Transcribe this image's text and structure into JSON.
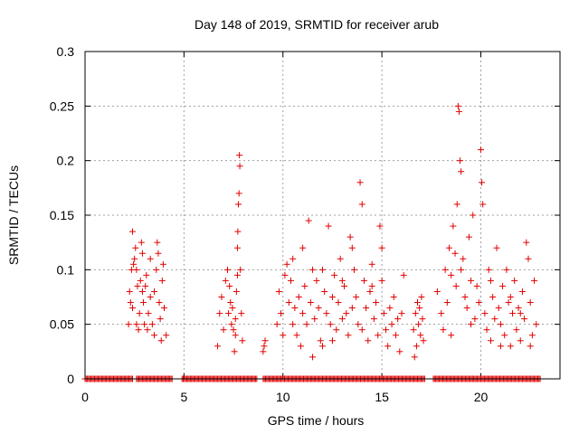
{
  "chart_data": {
    "type": "scatter",
    "title": "Day 148 of 2019, SRMTID for receiver arub",
    "xlabel": "GPS time / hours",
    "ylabel": "SRMTID / TECUs",
    "xlim": [
      0,
      24
    ],
    "ylim": [
      0,
      0.3
    ],
    "xticks": [
      0,
      5,
      10,
      15,
      20
    ],
    "xtick_labels": [
      "0",
      "5",
      "10",
      "15",
      "20"
    ],
    "yticks": [
      0,
      0.05,
      0.1,
      0.15,
      0.2,
      0.25,
      0.3
    ],
    "ytick_labels": [
      "0",
      "0.05",
      "0.1",
      "0.15",
      "0.2",
      "0.25",
      "0.3"
    ],
    "grid": true,
    "marker": "+",
    "color": "#e00000",
    "series": [
      {
        "name": "SRMTID",
        "points": [
          [
            2.2,
            0.05
          ],
          [
            2.25,
            0.08
          ],
          [
            2.3,
            0.07
          ],
          [
            2.35,
            0.1
          ],
          [
            2.4,
            0.135
          ],
          [
            2.45,
            0.105
          ],
          [
            2.5,
            0.11
          ],
          [
            2.55,
            0.12
          ],
          [
            2.6,
            0.1
          ],
          [
            2.65,
            0.085
          ],
          [
            2.7,
            0.045
          ],
          [
            2.75,
            0.06
          ],
          [
            2.8,
            0.09
          ],
          [
            2.85,
            0.125
          ],
          [
            2.9,
            0.115
          ],
          [
            2.95,
            0.07
          ],
          [
            3.0,
            0.05
          ],
          [
            3.05,
            0.085
          ],
          [
            3.1,
            0.095
          ],
          [
            3.15,
            0.045
          ],
          [
            3.2,
            0.06
          ],
          [
            3.3,
            0.075
          ],
          [
            3.4,
            0.05
          ],
          [
            3.5,
            0.08
          ],
          [
            3.6,
            0.1
          ],
          [
            3.65,
            0.125
          ],
          [
            3.7,
            0.115
          ],
          [
            3.75,
            0.07
          ],
          [
            3.8,
            0.055
          ],
          [
            3.85,
            0.035
          ],
          [
            3.9,
            0.09
          ],
          [
            3.95,
            0.105
          ],
          [
            4.0,
            0.065
          ],
          [
            4.1,
            0.04
          ],
          [
            2.4,
            0.065
          ],
          [
            2.6,
            0.05
          ],
          [
            2.9,
            0.08
          ],
          [
            3.3,
            0.11
          ],
          [
            3.5,
            0.04
          ],
          [
            6.7,
            0.03
          ],
          [
            6.8,
            0.06
          ],
          [
            6.9,
            0.075
          ],
          [
            7.0,
            0.045
          ],
          [
            7.1,
            0.09
          ],
          [
            7.2,
            0.1
          ],
          [
            7.25,
            0.06
          ],
          [
            7.3,
            0.085
          ],
          [
            7.35,
            0.07
          ],
          [
            7.4,
            0.05
          ],
          [
            7.45,
            0.065
          ],
          [
            7.5,
            0.045
          ],
          [
            7.55,
            0.025
          ],
          [
            7.6,
            0.055
          ],
          [
            7.65,
            0.08
          ],
          [
            7.7,
            0.12
          ],
          [
            7.72,
            0.135
          ],
          [
            7.75,
            0.16
          ],
          [
            7.78,
            0.17
          ],
          [
            7.8,
            0.205
          ],
          [
            7.82,
            0.195
          ],
          [
            7.85,
            0.1
          ],
          [
            7.9,
            0.06
          ],
          [
            7.95,
            0.035
          ],
          [
            7.6,
            0.04
          ],
          [
            7.7,
            0.095
          ],
          [
            9.0,
            0.025
          ],
          [
            9.05,
            0.03
          ],
          [
            9.1,
            0.035
          ],
          [
            9.7,
            0.05
          ],
          [
            9.8,
            0.08
          ],
          [
            9.9,
            0.06
          ],
          [
            10.0,
            0.04
          ],
          [
            10.1,
            0.095
          ],
          [
            10.2,
            0.105
          ],
          [
            10.3,
            0.07
          ],
          [
            10.4,
            0.09
          ],
          [
            10.5,
            0.05
          ],
          [
            10.6,
            0.065
          ],
          [
            10.7,
            0.04
          ],
          [
            10.8,
            0.075
          ],
          [
            10.9,
            0.03
          ],
          [
            11.0,
            0.06
          ],
          [
            11.1,
            0.085
          ],
          [
            11.2,
            0.05
          ],
          [
            11.3,
            0.145
          ],
          [
            11.4,
            0.07
          ],
          [
            11.5,
            0.02
          ],
          [
            11.6,
            0.055
          ],
          [
            11.7,
            0.09
          ],
          [
            11.8,
            0.065
          ],
          [
            11.9,
            0.035
          ],
          [
            12.0,
            0.1
          ],
          [
            12.1,
            0.08
          ],
          [
            12.2,
            0.06
          ],
          [
            12.3,
            0.14
          ],
          [
            12.4,
            0.05
          ],
          [
            12.5,
            0.075
          ],
          [
            12.6,
            0.095
          ],
          [
            12.7,
            0.045
          ],
          [
            12.8,
            0.07
          ],
          [
            12.9,
            0.11
          ],
          [
            13.0,
            0.055
          ],
          [
            13.1,
            0.085
          ],
          [
            13.2,
            0.06
          ],
          [
            13.3,
            0.04
          ],
          [
            13.4,
            0.13
          ],
          [
            13.5,
            0.12
          ],
          [
            13.6,
            0.1
          ],
          [
            13.7,
            0.075
          ],
          [
            13.8,
            0.05
          ],
          [
            13.9,
            0.18
          ],
          [
            14.0,
            0.16
          ],
          [
            14.1,
            0.09
          ],
          [
            14.2,
            0.065
          ],
          [
            14.3,
            0.035
          ],
          [
            14.4,
            0.08
          ],
          [
            14.5,
            0.105
          ],
          [
            14.6,
            0.055
          ],
          [
            14.7,
            0.07
          ],
          [
            14.8,
            0.04
          ],
          [
            14.9,
            0.14
          ],
          [
            15.0,
            0.12
          ],
          [
            15.1,
            0.06
          ],
          [
            15.2,
            0.045
          ],
          [
            15.3,
            0.03
          ],
          [
            15.4,
            0.065
          ],
          [
            15.5,
            0.05
          ],
          [
            15.6,
            0.075
          ],
          [
            15.7,
            0.04
          ],
          [
            15.8,
            0.055
          ],
          [
            15.9,
            0.025
          ],
          [
            16.0,
            0.06
          ],
          [
            16.1,
            0.095
          ],
          [
            10.5,
            0.11
          ],
          [
            11.0,
            0.12
          ],
          [
            12.5,
            0.035
          ],
          [
            13.0,
            0.09
          ],
          [
            14.0,
            0.045
          ],
          [
            14.5,
            0.085
          ],
          [
            15.0,
            0.09
          ],
          [
            11.5,
            0.1
          ],
          [
            12.0,
            0.03
          ],
          [
            13.5,
            0.065
          ],
          [
            16.6,
            0.045
          ],
          [
            16.7,
            0.06
          ],
          [
            16.75,
            0.03
          ],
          [
            16.8,
            0.07
          ],
          [
            16.85,
            0.05
          ],
          [
            16.9,
            0.065
          ],
          [
            16.95,
            0.04
          ],
          [
            17.0,
            0.075
          ],
          [
            17.05,
            0.055
          ],
          [
            17.1,
            0.035
          ],
          [
            16.65,
            0.02
          ],
          [
            17.8,
            0.08
          ],
          [
            18.0,
            0.06
          ],
          [
            18.1,
            0.045
          ],
          [
            18.2,
            0.1
          ],
          [
            18.3,
            0.07
          ],
          [
            18.4,
            0.12
          ],
          [
            18.5,
            0.095
          ],
          [
            18.6,
            0.14
          ],
          [
            18.7,
            0.115
          ],
          [
            18.75,
            0.085
          ],
          [
            18.8,
            0.16
          ],
          [
            18.85,
            0.25
          ],
          [
            18.9,
            0.245
          ],
          [
            18.95,
            0.2
          ],
          [
            19.0,
            0.19
          ],
          [
            19.1,
            0.11
          ],
          [
            19.2,
            0.075
          ],
          [
            19.3,
            0.065
          ],
          [
            19.4,
            0.13
          ],
          [
            19.5,
            0.09
          ],
          [
            19.6,
            0.15
          ],
          [
            19.7,
            0.055
          ],
          [
            19.8,
            0.085
          ],
          [
            19.9,
            0.07
          ],
          [
            20.0,
            0.21
          ],
          [
            20.05,
            0.18
          ],
          [
            20.1,
            0.16
          ],
          [
            20.2,
            0.06
          ],
          [
            20.3,
            0.045
          ],
          [
            20.4,
            0.1
          ],
          [
            20.5,
            0.035
          ],
          [
            20.6,
            0.075
          ],
          [
            20.7,
            0.055
          ],
          [
            20.8,
            0.12
          ],
          [
            20.9,
            0.065
          ],
          [
            21.0,
            0.05
          ],
          [
            21.1,
            0.085
          ],
          [
            21.2,
            0.04
          ],
          [
            21.3,
            0.1
          ],
          [
            21.4,
            0.07
          ],
          [
            21.5,
            0.03
          ],
          [
            21.6,
            0.06
          ],
          [
            21.7,
            0.09
          ],
          [
            21.8,
            0.045
          ],
          [
            21.9,
            0.065
          ],
          [
            22.0,
            0.035
          ],
          [
            22.1,
            0.08
          ],
          [
            22.2,
            0.055
          ],
          [
            22.3,
            0.125
          ],
          [
            22.4,
            0.11
          ],
          [
            22.5,
            0.07
          ],
          [
            22.6,
            0.04
          ],
          [
            22.7,
            0.09
          ],
          [
            22.8,
            0.05
          ],
          [
            18.5,
            0.04
          ],
          [
            19.0,
            0.1
          ],
          [
            19.5,
            0.05
          ],
          [
            20.5,
            0.09
          ],
          [
            21.0,
            0.03
          ],
          [
            21.5,
            0.075
          ],
          [
            22.0,
            0.06
          ],
          [
            22.5,
            0.03
          ]
        ]
      }
    ],
    "zero_band": {
      "y": 0,
      "segments": [
        [
          0.0,
          2.4
        ],
        [
          2.6,
          4.4
        ],
        [
          4.9,
          8.7
        ],
        [
          9.0,
          17.2
        ],
        [
          17.6,
          23.0
        ]
      ]
    }
  }
}
